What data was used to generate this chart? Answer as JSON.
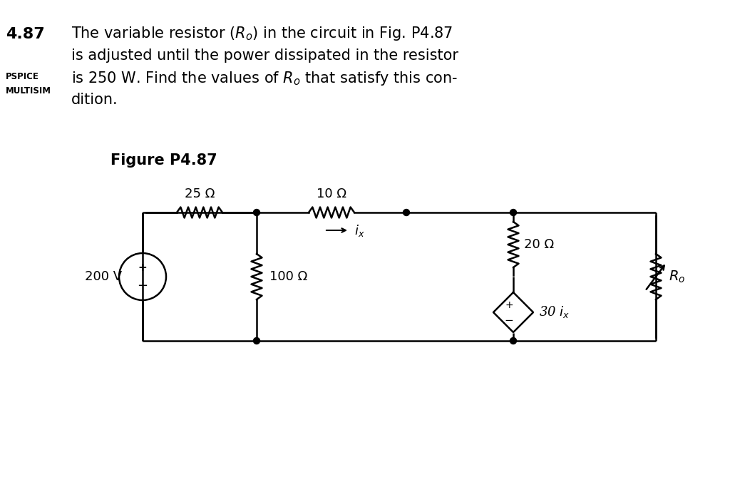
{
  "title_number": "4.87",
  "title_text_line1": "The variable resistor $(R_o)$ in the circuit in Fig. P4.87",
  "title_text_line2": "is adjusted until the power dissipated in the resistor",
  "title_text_line3": "is 250 W. Find the values of $R_o$ that satisfy this con-",
  "title_text_line4": "dition.",
  "label_pspice": "PSPICE",
  "label_multisim": "MULTISIM",
  "figure_label": "Figure P4.87",
  "bg_color": "#ffffff",
  "text_color": "#000000",
  "circuit_color": "#000000",
  "voltage_source": "200 V",
  "R1_label": "25 Ω",
  "R2_label": "10 Ω",
  "R3_label": "100 Ω",
  "R4_label": "20 Ω",
  "R5_label": "$R_o$",
  "dep_source_label": "30 $i_x$",
  "current_label": "$i_x$"
}
